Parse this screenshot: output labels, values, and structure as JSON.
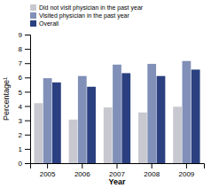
{
  "chart_data": {
    "type": "bar",
    "xlabel": "Year",
    "ylabel": "Percentage¹",
    "categories": [
      "2005",
      "2006",
      "2007",
      "2008",
      "2009"
    ],
    "series": [
      {
        "name": "Did not visit physician in the past year",
        "color": "#c8c8d0",
        "values": [
          4.2,
          3.05,
          3.9,
          3.55,
          3.95
        ]
      },
      {
        "name": "Visited physician in the past year",
        "color": "#8090b8",
        "values": [
          5.95,
          6.1,
          6.9,
          6.95,
          7.15
        ]
      },
      {
        "name": "Overall",
        "color": "#2a4080",
        "values": [
          5.65,
          5.35,
          6.3,
          6.1,
          6.55
        ]
      }
    ],
    "ylim": [
      0,
      9
    ],
    "yticks": [
      0,
      1,
      2,
      3,
      4,
      5,
      6,
      7,
      8,
      9
    ],
    "legend": "upper left"
  }
}
